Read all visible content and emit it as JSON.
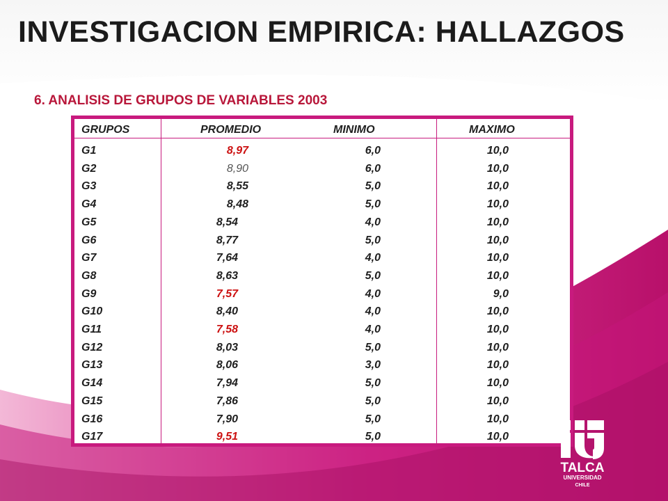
{
  "slide": {
    "title": "INVESTIGACION EMPIRICA: HALLAZGOS",
    "subtitle": "6. ANALISIS DE GRUPOS DE VARIABLES 2003"
  },
  "table": {
    "headers": [
      "GRUPOS",
      "PROMEDIO",
      "MINIMO",
      "MAXIMO"
    ],
    "rows": [
      {
        "group": "G1",
        "promedio": "8,97",
        "minimo": "6,0",
        "maximo": "10,0",
        "prom_style": "red"
      },
      {
        "group": "G2",
        "promedio": "8,90",
        "minimo": "6,0",
        "maximo": "10,0",
        "prom_style": "light"
      },
      {
        "group": "G3",
        "promedio": "8,55",
        "minimo": "5,0",
        "maximo": "10,0",
        "prom_style": "normal"
      },
      {
        "group": "G4",
        "promedio": "8,48",
        "minimo": "5,0",
        "maximo": "10,0",
        "prom_style": "normal"
      },
      {
        "group": "G5",
        "promedio": "8,54",
        "minimo": "4,0",
        "maximo": "10,0",
        "prom_style": "normal"
      },
      {
        "group": "G6",
        "promedio": "8,77",
        "minimo": "5,0",
        "maximo": "10,0",
        "prom_style": "normal"
      },
      {
        "group": "G7",
        "promedio": "7,64",
        "minimo": "4,0",
        "maximo": "10,0",
        "prom_style": "normal"
      },
      {
        "group": "G8",
        "promedio": "8,63",
        "minimo": "5,0",
        "maximo": "10,0",
        "prom_style": "normal"
      },
      {
        "group": "G9",
        "promedio": "7,57",
        "minimo": "4,0",
        "maximo": "9,0",
        "prom_style": "red"
      },
      {
        "group": "G10",
        "promedio": "8,40",
        "minimo": "4,0",
        "maximo": "10,0",
        "prom_style": "normal"
      },
      {
        "group": "G11",
        "promedio": "7,58",
        "minimo": "4,0",
        "maximo": "10,0",
        "prom_style": "red"
      },
      {
        "group": "G12",
        "promedio": "8,03",
        "minimo": "5,0",
        "maximo": "10,0",
        "prom_style": "normal"
      },
      {
        "group": "G13",
        "promedio": "8,06",
        "minimo": "3,0",
        "maximo": "10,0",
        "prom_style": "normal"
      },
      {
        "group": "G14",
        "promedio": "7,94",
        "minimo": "5,0",
        "maximo": "10,0",
        "prom_style": "normal"
      },
      {
        "group": "G15",
        "promedio": "7,86",
        "minimo": "5,0",
        "maximo": "10,0",
        "prom_style": "normal"
      },
      {
        "group": "G16",
        "promedio": "7,90",
        "minimo": "5,0",
        "maximo": "10,0",
        "prom_style": "normal"
      },
      {
        "group": "G17",
        "promedio": "9,51",
        "minimo": "5,0",
        "maximo": "10,0",
        "prom_style": "red"
      }
    ]
  },
  "logo": {
    "line1": "TALCA",
    "line2": "UNIVERSIDAD",
    "line3": "CHILE"
  },
  "colors": {
    "accent": "#c81a7e",
    "subtitle": "#b8173a",
    "highlight": "#cc1111"
  }
}
